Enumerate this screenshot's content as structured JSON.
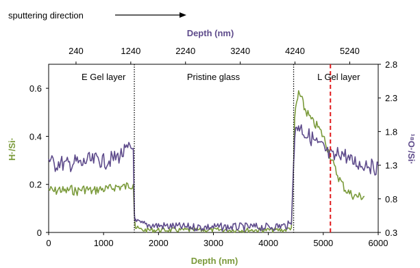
{
  "annotation": {
    "text": "sputtering direction"
  },
  "chart_data": {
    "type": "line",
    "title": "",
    "xlabel": "Depth (nm)",
    "x2label": "Depth (nm)",
    "ylabel": "H·/Si·",
    "y2label": "¹⁸O·/Si·",
    "xlim": [
      0,
      6000
    ],
    "x2lim": [
      -260,
      5760
    ],
    "ylim": [
      0,
      0.7
    ],
    "y2lim": [
      0.3,
      2.8
    ],
    "xticks": [
      0,
      1000,
      2000,
      3000,
      4000,
      5000,
      6000
    ],
    "x2ticks": [
      240,
      1240,
      2240,
      3240,
      4240,
      5240
    ],
    "yticks": [
      0,
      0.2,
      0.4,
      0.6
    ],
    "yticklabels": [
      "0",
      "0.2",
      "0.4",
      "0.6"
    ],
    "y2ticks": [
      0.3,
      0.8,
      1.3,
      1.8,
      2.3,
      2.8
    ],
    "y2ticklabels": [
      "0.3",
      "0.8",
      "1.3",
      "1.8",
      "2.3",
      "2.8"
    ],
    "grid": false,
    "colors": {
      "h": "#7a9a3a",
      "o18": "#5e4b8b",
      "marker": "#e0191b"
    },
    "regions": [
      {
        "label": "E Gel layer",
        "x": 1000
      },
      {
        "label": "Pristine glass",
        "x": 3000
      },
      {
        "label": "L Gel layer",
        "x": 5280
      }
    ],
    "boundaries": [
      1560,
      4460
    ],
    "marker_x": 5130,
    "series": [
      {
        "name": "",
        "axis": "left",
        "color": "#7a9a3a",
        "x": [
          0,
          100,
          200,
          300,
          400,
          500,
          600,
          700,
          800,
          900,
          1000,
          1100,
          1200,
          1300,
          1400,
          1500,
          1540,
          1560,
          1580,
          1700,
          2000,
          2500,
          3000,
          3500,
          4000,
          4300,
          4420,
          4460,
          4480,
          4550,
          4600,
          4650,
          4700,
          4800,
          4900,
          5000,
          5100,
          5200,
          5300,
          5400,
          5500,
          5600,
          5750
        ],
        "y": [
          0.18,
          0.17,
          0.18,
          0.17,
          0.18,
          0.17,
          0.18,
          0.18,
          0.17,
          0.18,
          0.18,
          0.18,
          0.19,
          0.19,
          0.19,
          0.2,
          0.2,
          0.08,
          0.02,
          0.01,
          0.01,
          0.01,
          0.01,
          0.01,
          0.01,
          0.01,
          0.02,
          0.28,
          0.48,
          0.58,
          0.56,
          0.52,
          0.5,
          0.46,
          0.44,
          0.4,
          0.34,
          0.27,
          0.22,
          0.18,
          0.16,
          0.15,
          0.15
        ]
      },
      {
        "name": "",
        "axis": "right",
        "color": "#5e4b8b",
        "x": [
          0,
          100,
          200,
          300,
          400,
          500,
          600,
          700,
          800,
          900,
          1000,
          1100,
          1200,
          1300,
          1400,
          1500,
          1540,
          1560,
          1580,
          1700,
          2000,
          2500,
          3000,
          3500,
          4000,
          4300,
          4420,
          4460,
          4480,
          4550,
          4600,
          4700,
          4800,
          4900,
          5000,
          5100,
          5200,
          5300,
          5400,
          5500,
          5600,
          5700,
          5800,
          5900,
          6000
        ],
        "y": [
          1.4,
          1.3,
          1.35,
          1.3,
          1.32,
          1.35,
          1.3,
          1.38,
          1.35,
          1.4,
          1.35,
          1.38,
          1.4,
          1.45,
          1.5,
          1.55,
          1.55,
          0.6,
          0.45,
          0.42,
          0.4,
          0.38,
          0.38,
          0.38,
          0.38,
          0.4,
          0.42,
          1.4,
          1.75,
          1.9,
          1.85,
          1.75,
          1.7,
          1.6,
          1.55,
          1.45,
          1.4,
          1.5,
          1.45,
          1.35,
          1.35,
          1.3,
          1.35,
          1.25,
          1.3
        ]
      }
    ]
  }
}
